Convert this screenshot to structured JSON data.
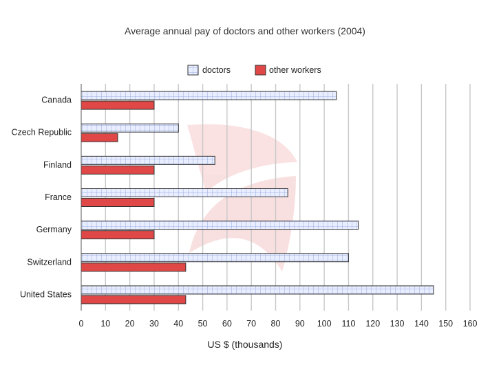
{
  "chart_data": {
    "type": "bar",
    "orientation": "horizontal",
    "title": "Average annual pay of doctors and other workers (2004)",
    "xlabel": "US $ (thousands)",
    "ylabel": "",
    "xlim": [
      0,
      160
    ],
    "ticks": [
      "0",
      "10",
      "20",
      "30",
      "40",
      "50",
      "60",
      "70",
      "80",
      "90",
      "100",
      "110",
      "120",
      "130",
      "140",
      "150",
      "160"
    ],
    "tick_values": [
      0,
      10,
      20,
      30,
      40,
      50,
      60,
      70,
      80,
      90,
      100,
      110,
      120,
      130,
      140,
      150,
      160
    ],
    "grid": "vertical",
    "legend_position": "top-center",
    "categories": [
      "Canada",
      "Czech Republic",
      "Finland",
      "France",
      "Germany",
      "Switzerland",
      "United States"
    ],
    "series": [
      {
        "name": "doctors",
        "values": [
          105,
          40,
          55,
          85,
          114,
          110,
          145
        ],
        "color": "#e8eeff",
        "pattern": "grid",
        "pattern_color": "#8a9ad6"
      },
      {
        "name": "other workers",
        "values": [
          30,
          15,
          30,
          30,
          30,
          43,
          43
        ],
        "color": "#e04848",
        "pattern": "solid"
      }
    ]
  }
}
